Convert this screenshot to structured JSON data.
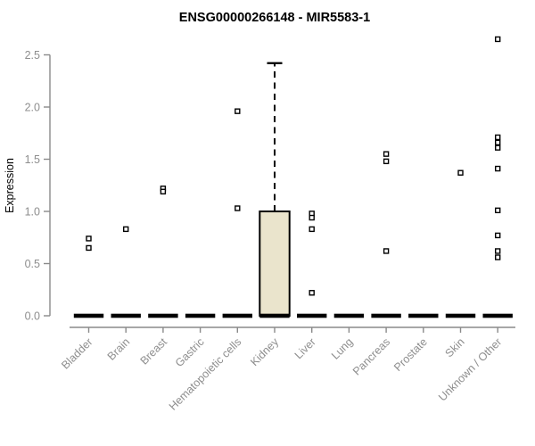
{
  "chart_data": {
    "type": "boxplot",
    "title": "ENSG00000266148 - MIR5583-1",
    "ylabel": "Expression",
    "ylim": [
      0.0,
      2.5
    ],
    "yticks": [
      "0.0",
      "0.5",
      "1.0",
      "1.5",
      "2.0",
      "2.5"
    ],
    "grid": false,
    "legend": "none",
    "categories": [
      "Bladder",
      "Brain",
      "Breast",
      "Gastric",
      "Hematopoietic cells",
      "Kidney",
      "Liver",
      "Lung",
      "Pancreas",
      "Prostate",
      "Skin",
      "Unknown / Other"
    ],
    "boxes": [
      {
        "category": "Bladder",
        "median": 0,
        "q1": 0,
        "q3": 0,
        "whisker_low": 0,
        "whisker_high": 0,
        "outliers": [
          0.74,
          0.65
        ]
      },
      {
        "category": "Brain",
        "median": 0,
        "q1": 0,
        "q3": 0,
        "whisker_low": 0,
        "whisker_high": 0,
        "outliers": [
          0.83
        ]
      },
      {
        "category": "Breast",
        "median": 0,
        "q1": 0,
        "q3": 0,
        "whisker_low": 0,
        "whisker_high": 0,
        "outliers": [
          1.22,
          1.19
        ]
      },
      {
        "category": "Gastric",
        "median": 0,
        "q1": 0,
        "q3": 0,
        "whisker_low": 0,
        "whisker_high": 0,
        "outliers": []
      },
      {
        "category": "Hematopoietic cells",
        "median": 0,
        "q1": 0,
        "q3": 0,
        "whisker_low": 0,
        "whisker_high": 0,
        "outliers": [
          1.96,
          1.03
        ]
      },
      {
        "category": "Kidney",
        "median": 0,
        "q1": 0,
        "q3": 1.0,
        "whisker_low": 0,
        "whisker_high": 2.42,
        "outliers": []
      },
      {
        "category": "Liver",
        "median": 0,
        "q1": 0,
        "q3": 0,
        "whisker_low": 0,
        "whisker_high": 0,
        "outliers": [
          0.98,
          0.94,
          0.83,
          0.22
        ]
      },
      {
        "category": "Lung",
        "median": 0,
        "q1": 0,
        "q3": 0,
        "whisker_low": 0,
        "whisker_high": 0,
        "outliers": []
      },
      {
        "category": "Pancreas",
        "median": 0,
        "q1": 0,
        "q3": 0,
        "whisker_low": 0,
        "whisker_high": 0,
        "outliers": [
          1.55,
          1.48,
          0.62
        ]
      },
      {
        "category": "Prostate",
        "median": 0,
        "q1": 0,
        "q3": 0,
        "whisker_low": 0,
        "whisker_high": 0,
        "outliers": []
      },
      {
        "category": "Skin",
        "median": 0,
        "q1": 0,
        "q3": 0,
        "whisker_low": 0,
        "whisker_high": 0,
        "outliers": [
          1.37
        ]
      },
      {
        "category": "Unknown / Other",
        "median": 0,
        "q1": 0,
        "q3": 0,
        "whisker_low": 0,
        "whisker_high": 0,
        "outliers": [
          2.65,
          1.71,
          1.66,
          1.61,
          1.41,
          1.01,
          0.77,
          0.62,
          0.56
        ]
      }
    ],
    "colors": {
      "box_fill": "#EAE4CC",
      "box_border": "#000000",
      "median": "#000000",
      "outlier": "#000000",
      "outlier_fill": "#ffffff",
      "axis_line": "#8A8A8A",
      "tick_label": "#8E8E8E",
      "title": "#000000",
      "background": "#ffffff"
    }
  }
}
